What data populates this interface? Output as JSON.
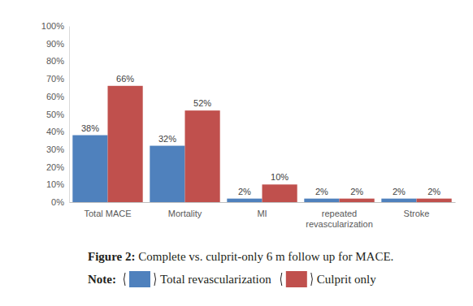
{
  "chart_data": {
    "type": "bar",
    "title": "Figure 2: Complete vs. culprit-only 6 m follow up for MACE.",
    "annotations": [
      "Note:"
    ],
    "categories": [
      "Total MACE",
      "Mortality",
      "MI",
      "repeated revascularization",
      "Stroke"
    ],
    "series": [
      {
        "name": "Total revascularization",
        "color": "#4f81bd",
        "values": [
          38,
          32,
          2,
          2,
          2
        ],
        "value_labels": [
          "38%",
          "32%",
          "2%",
          "2%",
          "2%"
        ]
      },
      {
        "name": "Culprit only",
        "color": "#c0504d",
        "values": [
          66,
          52,
          10,
          2,
          2
        ],
        "value_labels": [
          "66%",
          "52%",
          "10%",
          "2%",
          "2%"
        ]
      }
    ],
    "ylim": [
      0,
      100
    ],
    "yticks": [
      {
        "value": 0,
        "label": "0%"
      },
      {
        "value": 10,
        "label": "10%"
      },
      {
        "value": 20,
        "label": "20%"
      },
      {
        "value": 30,
        "label": "30%"
      },
      {
        "value": 40,
        "label": "40%"
      },
      {
        "value": 50,
        "label": "50%"
      },
      {
        "value": 60,
        "label": "60%"
      },
      {
        "value": 70,
        "label": "70%"
      },
      {
        "value": 80,
        "label": "80%"
      },
      {
        "value": 90,
        "label": "90%"
      },
      {
        "value": 100,
        "label": "100%"
      }
    ],
    "grid": false,
    "legend": "bottom",
    "data_labels": true
  }
}
